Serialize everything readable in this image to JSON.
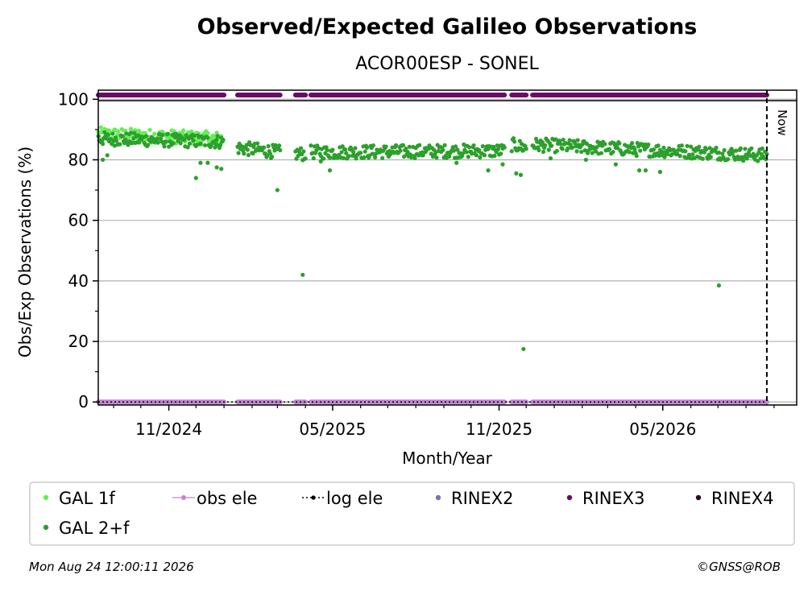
{
  "chart_data": {
    "type": "scatter",
    "title": "Observed/Expected Galileo Observations",
    "subtitle": "ACOR00ESP - SONEL",
    "xlabel": "Month/Year",
    "ylabel": "Obs/Exp Observations (%)",
    "xlim": [
      "2024-08-15",
      "2026-09-26"
    ],
    "ylim": [
      -1,
      103
    ],
    "yticks": [
      0,
      20,
      40,
      60,
      80,
      100
    ],
    "xticks": [
      {
        "date": "2024-11-01",
        "label": "11/2024"
      },
      {
        "date": "2025-05-01",
        "label": "05/2025"
      },
      {
        "date": "2025-11-01",
        "label": "11/2025"
      },
      {
        "date": "2026-05-01",
        "label": "05/2026"
      }
    ],
    "grid": true,
    "now_date": "2026-08-24",
    "now_label": "Now",
    "data_gaps": [
      [
        "2025-01-02",
        "2025-01-15"
      ],
      [
        "2025-03-05",
        "2025-03-20"
      ],
      [
        "2025-04-02",
        "2025-04-06"
      ],
      [
        "2025-11-08",
        "2025-11-14"
      ],
      [
        "2025-12-02",
        "2025-12-07"
      ]
    ],
    "series": [
      {
        "name": "GAL 1f",
        "color": "#66ee55",
        "marker": "dot",
        "segments": [
          {
            "start": "2024-08-15",
            "end": "2024-12-31",
            "from": 88.5,
            "to": 87
          }
        ]
      },
      {
        "name": "GAL 2+f",
        "color": "#2ca02c",
        "marker": "dot",
        "segments": [
          {
            "start": "2024-08-15",
            "end": "2024-12-31",
            "from": 87,
            "to": 86
          },
          {
            "start": "2025-01-16",
            "end": "2025-03-04",
            "from": 84,
            "to": 82.5
          },
          {
            "start": "2025-03-21",
            "end": "2025-04-01",
            "from": 82,
            "to": 82
          },
          {
            "start": "2025-04-07",
            "end": "2025-11-07",
            "from": 82.5,
            "to": 83
          },
          {
            "start": "2025-11-15",
            "end": "2025-12-01",
            "from": 85,
            "to": 84
          },
          {
            "start": "2025-12-08",
            "end": "2026-08-24",
            "from": 85,
            "to": 81.5
          }
        ],
        "outliers": [
          {
            "x": "2024-08-20",
            "y": 80
          },
          {
            "x": "2024-08-25",
            "y": 81.5
          },
          {
            "x": "2024-12-01",
            "y": 74
          },
          {
            "x": "2024-12-06",
            "y": 79
          },
          {
            "x": "2024-12-14",
            "y": 79
          },
          {
            "x": "2024-12-24",
            "y": 77.5
          },
          {
            "x": "2024-12-29",
            "y": 77
          },
          {
            "x": "2025-03-01",
            "y": 70
          },
          {
            "x": "2025-03-29",
            "y": 42
          },
          {
            "x": "2025-04-18",
            "y": 79.5
          },
          {
            "x": "2025-04-28",
            "y": 76.5
          },
          {
            "x": "2025-09-15",
            "y": 79
          },
          {
            "x": "2025-10-20",
            "y": 76.5
          },
          {
            "x": "2025-11-05",
            "y": 78.5
          },
          {
            "x": "2025-11-20",
            "y": 75.5
          },
          {
            "x": "2025-11-25",
            "y": 75
          },
          {
            "x": "2025-11-28",
            "y": 17.5
          },
          {
            "x": "2025-12-28",
            "y": 80.5
          },
          {
            "x": "2026-02-05",
            "y": 80
          },
          {
            "x": "2026-03-10",
            "y": 78.5
          },
          {
            "x": "2026-04-05",
            "y": 76.5
          },
          {
            "x": "2026-04-12",
            "y": 76.5
          },
          {
            "x": "2026-04-28",
            "y": 76
          },
          {
            "x": "2026-07-02",
            "y": 38.5
          }
        ]
      },
      {
        "name": "obs ele",
        "color": "#c084d0",
        "marker": "line-dot"
      },
      {
        "name": "log ele",
        "color": "#000000",
        "marker": "dotted-line"
      },
      {
        "name": "RINEX2",
        "color": "#7b72b5",
        "marker": "dot"
      },
      {
        "name": "RINEX3",
        "color": "#6b0a6b",
        "marker": "dot"
      },
      {
        "name": "RINEX4",
        "color": "#2a0a2a",
        "marker": "dot"
      }
    ]
  },
  "footer": {
    "timestamp": "Mon Aug 24 12:00:11 2026",
    "credit": "©GNSS@ROB"
  }
}
